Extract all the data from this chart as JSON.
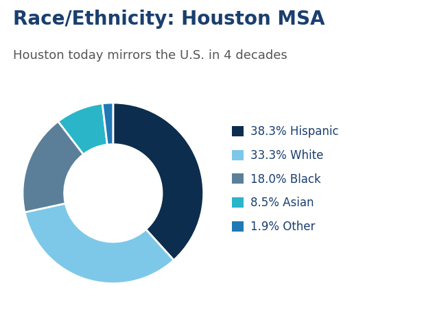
{
  "title": "Race/Ethnicity: Houston MSA",
  "subtitle": "Houston today mirrors the U.S. in 4 decades",
  "title_color": "#1a3f6f",
  "subtitle_color": "#555555",
  "title_fontsize": 20,
  "subtitle_fontsize": 13,
  "labels": [
    "38.3% Hispanic",
    "33.3% White",
    "18.0% Black",
    "8.5% Asian",
    "1.9% Other"
  ],
  "values": [
    38.3,
    33.3,
    18.0,
    8.5,
    1.9
  ],
  "colors": [
    "#0d2d4e",
    "#7dc8e8",
    "#5b7f99",
    "#2ab5c8",
    "#2079b4"
  ],
  "background_color": "#ffffff",
  "legend_fontsize": 12,
  "legend_text_color": "#1a3f6f",
  "startangle": 90
}
